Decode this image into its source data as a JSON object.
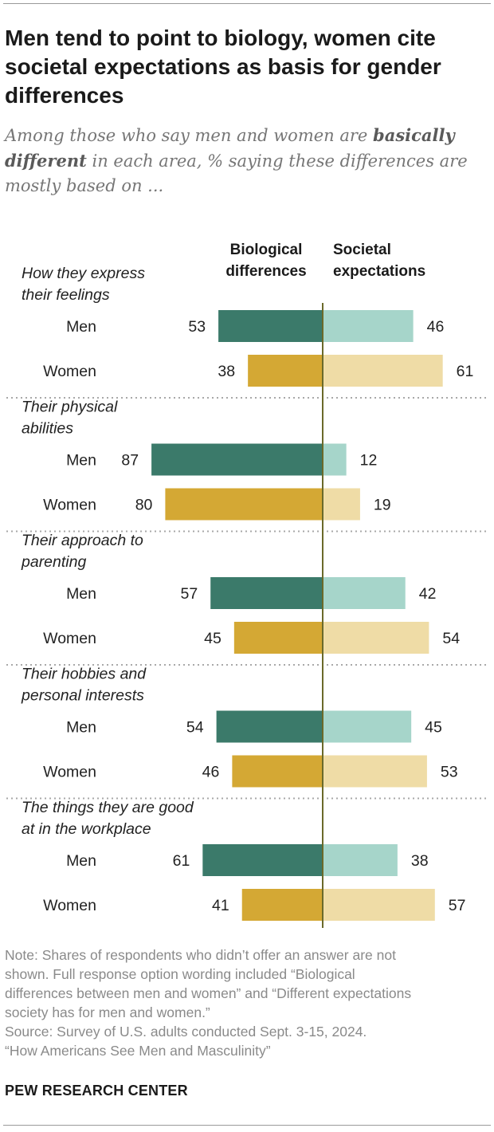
{
  "title": "Men tend to point to biology, women cite societal expectations as basis for gender differences",
  "subtitle": {
    "before": "Among those who say men and women are ",
    "bold": "basically different",
    "after": " in each area, % saying these differences are mostly based on ..."
  },
  "chart_data": {
    "type": "bar",
    "orientation": "horizontal-diverging",
    "columns": [
      {
        "key": "biological",
        "label_line1": "Biological",
        "label_line2": "differences"
      },
      {
        "key": "societal",
        "label_line1": "Societal",
        "label_line2": "expectations"
      }
    ],
    "xlim": [
      0,
      100
    ],
    "row_labels": [
      "Men",
      "Women"
    ],
    "groups": [
      {
        "label_lines": [
          "How they express",
          "their feelings"
        ],
        "men": {
          "biological": 53,
          "societal": 46
        },
        "women": {
          "biological": 38,
          "societal": 61
        }
      },
      {
        "label_lines": [
          "Their physical",
          "abilities"
        ],
        "men": {
          "biological": 87,
          "societal": 12
        },
        "women": {
          "biological": 80,
          "societal": 19
        }
      },
      {
        "label_lines": [
          "Their approach to",
          "parenting"
        ],
        "men": {
          "biological": 57,
          "societal": 42
        },
        "women": {
          "biological": 45,
          "societal": 54
        }
      },
      {
        "label_lines": [
          "Their hobbies and",
          "personal interests"
        ],
        "men": {
          "biological": 54,
          "societal": 45
        },
        "women": {
          "biological": 46,
          "societal": 53
        }
      },
      {
        "label_lines": [
          "The things they are good",
          "at in the workplace"
        ],
        "men": {
          "biological": 61,
          "societal": 38
        },
        "women": {
          "biological": 41,
          "societal": 57
        }
      }
    ],
    "colors": {
      "men_biological": "#3b7a6a",
      "men_societal": "#a6d5ca",
      "women_biological": "#d4a834",
      "women_societal": "#efdca6",
      "axis": "#6b6a2a",
      "separator": "#a8a8a8"
    }
  },
  "note": {
    "line1": "Note: Shares of respondents who didn’t offer an answer are not",
    "line2": "shown. Full response option wording included “Biological",
    "line3": "differences between men and women” and “Different expectations",
    "line4": "society has for men and women.”",
    "source": "Source: Survey of U.S. adults conducted Sept. 3-15, 2024.",
    "report": "“How Americans See Men and Masculinity”"
  },
  "brand": "PEW RESEARCH CENTER"
}
